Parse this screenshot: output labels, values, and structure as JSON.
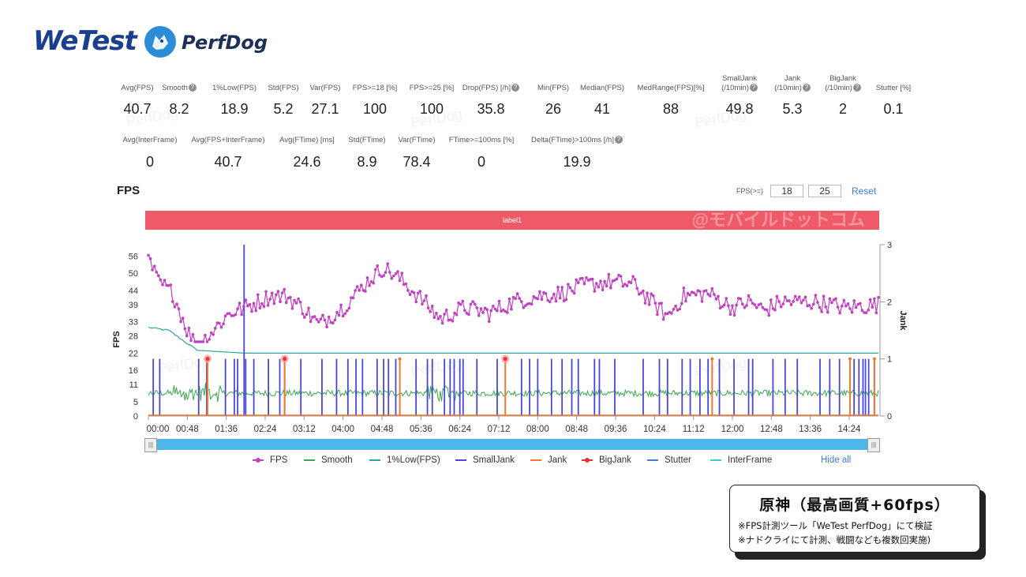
{
  "header": {
    "brand1": "WeTest",
    "brand2": "PerfDog"
  },
  "stats_row1": [
    {
      "label": "Avg(FPS)",
      "value": "40.7",
      "help": false
    },
    {
      "label": "Smooth",
      "value": "8.2",
      "help": true
    },
    {
      "label": "1%Low(FPS)",
      "value": "18.9",
      "help": false
    },
    {
      "label": "Std(FPS)",
      "value": "5.2",
      "help": false
    },
    {
      "label": "Var(FPS)",
      "value": "27.1",
      "help": false
    },
    {
      "label": "FPS>=18 [%]",
      "value": "100",
      "help": false
    },
    {
      "label": "FPS>=25 [%]",
      "value": "100",
      "help": false
    },
    {
      "label": "Drop(FPS) [/h]",
      "value": "35.8",
      "help": true
    },
    {
      "label": "Min(FPS)",
      "value": "26",
      "help": false
    },
    {
      "label": "Median(FPS)",
      "value": "41",
      "help": false
    },
    {
      "label": "MedRange(FPS)[%]",
      "value": "88",
      "help": false
    },
    {
      "label": "SmallJank",
      "label2": "(/10min)",
      "value": "49.8",
      "help": true
    },
    {
      "label": "Jank",
      "label2": "(/10min)",
      "value": "5.3",
      "help": true
    },
    {
      "label": "BigJank",
      "label2": "(/10min)",
      "value": "2",
      "help": true
    },
    {
      "label": "Stutter [%]",
      "value": "0.1",
      "help": false
    }
  ],
  "stats_row2": [
    {
      "label": "Avg(InterFrame)",
      "value": "0",
      "help": false
    },
    {
      "label": "Avg(FPS+InterFrame)",
      "value": "40.7",
      "help": false
    },
    {
      "label": "Avg(FTime) [ms]",
      "value": "24.6",
      "help": false
    },
    {
      "label": "Std(FTime)",
      "value": "8.9",
      "help": false
    },
    {
      "label": "Var(FTime)",
      "value": "78.4",
      "help": false
    },
    {
      "label": "FTime>=100ms [%]",
      "value": "0",
      "help": false
    },
    {
      "label": "Delta(FTime)>100ms [/h]",
      "value": "19.9",
      "help": true
    }
  ],
  "watermark": "PerfDog",
  "chart_header": {
    "title": "FPS",
    "threshold_label": "FPS(>=)",
    "threshold1": "18",
    "threshold2": "25",
    "reset": "Reset",
    "label_bar": "label1",
    "overlay_watermark": "@モバイルドットコム"
  },
  "chart_data": {
    "type": "line",
    "ylabel": "FPS",
    "y2label": "Jank",
    "y_ticks": [
      0,
      5,
      11,
      16,
      22,
      28,
      33,
      39,
      44,
      50,
      56
    ],
    "y2_ticks": [
      0,
      1,
      2,
      3
    ],
    "ylim": [
      0,
      60
    ],
    "y2lim": [
      0,
      3
    ],
    "x_ticks": [
      "00:00",
      "00:48",
      "01:36",
      "02:24",
      "03:12",
      "04:00",
      "04:48",
      "05:36",
      "06:24",
      "07:12",
      "08:00",
      "08:48",
      "09:36",
      "10:24",
      "11:12",
      "12:00",
      "12:48",
      "13:36",
      "14:24"
    ],
    "xlim_seconds": [
      0,
      900
    ],
    "fps_keypoints": [
      [
        0,
        55
      ],
      [
        12,
        47
      ],
      [
        30,
        43
      ],
      [
        48,
        30
      ],
      [
        60,
        24
      ],
      [
        80,
        30
      ],
      [
        100,
        36
      ],
      [
        120,
        38
      ],
      [
        150,
        42
      ],
      [
        170,
        42
      ],
      [
        190,
        38
      ],
      [
        210,
        32
      ],
      [
        240,
        38
      ],
      [
        270,
        47
      ],
      [
        290,
        52
      ],
      [
        310,
        48
      ],
      [
        340,
        40
      ],
      [
        360,
        34
      ],
      [
        390,
        38
      ],
      [
        420,
        36
      ],
      [
        450,
        40
      ],
      [
        480,
        42
      ],
      [
        510,
        43
      ],
      [
        540,
        46
      ],
      [
        570,
        47
      ],
      [
        600,
        46
      ],
      [
        620,
        40
      ],
      [
        640,
        35
      ],
      [
        660,
        42
      ],
      [
        690,
        43
      ],
      [
        720,
        38
      ],
      [
        740,
        40
      ],
      [
        760,
        37
      ],
      [
        780,
        40
      ],
      [
        820,
        40
      ],
      [
        860,
        38
      ],
      [
        900,
        39
      ]
    ],
    "smooth_level": 8,
    "low1_fps": [
      [
        0,
        31
      ],
      [
        25,
        30
      ],
      [
        40,
        27
      ],
      [
        60,
        23
      ],
      [
        120,
        22
      ],
      [
        900,
        22
      ]
    ],
    "small_jank_times": [
      6,
      14,
      62,
      72,
      95,
      106,
      110,
      120,
      130,
      148,
      162,
      168,
      188,
      214,
      232,
      246,
      256,
      264,
      282,
      290,
      296,
      305,
      330,
      344,
      350,
      365,
      372,
      377,
      384,
      388,
      405,
      430,
      460,
      470,
      480,
      497,
      510,
      522,
      530,
      550,
      556,
      575,
      610,
      630,
      640,
      658,
      668,
      680,
      690,
      704,
      722,
      740,
      745,
      770,
      785,
      800,
      828,
      840,
      852,
      870,
      876,
      881,
      884,
      888,
      895
    ],
    "big_jank_spike": [
      [
        118,
        3.0
      ]
    ],
    "jank_times": [
      73,
      168,
      310,
      440,
      695,
      865,
      895
    ],
    "big_jank_times": [
      73,
      168,
      440
    ],
    "legend": [
      "FPS",
      "Smooth",
      "1%Low(FPS)",
      "SmallJank",
      "Jank",
      "BigJank",
      "Stutter",
      "InterFrame"
    ]
  },
  "legend_colors": {
    "FPS": "#c040c0",
    "Smooth": "#3aa84a",
    "1%Low(FPS)": "#2aa7a0",
    "SmallJank": "#4848d8",
    "Jank": "#f07a30",
    "BigJank": "#e83030",
    "Stutter": "#3b7dd8",
    "InterFrame": "#3cc8e0"
  },
  "hide_all": "Hide all",
  "caption": {
    "title": "原神（最高画質+60fps）",
    "note1": "※FPS計測ツール「WeTest PerfDog」にて検証",
    "note2": "※ナドクライにて計測、戦闘なども複数回実施)"
  }
}
